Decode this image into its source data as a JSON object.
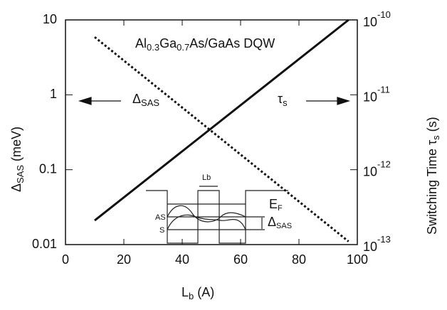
{
  "chart_data": {
    "type": "line",
    "title": [
      "Al",
      "0.3",
      "Ga",
      "0.7",
      "As/GaAs DQW"
    ],
    "x_label": [
      "L",
      "b",
      " (A)"
    ],
    "y_label": [
      "Δ",
      "SAS",
      " (meV)"
    ],
    "y2_label": [
      "Switching Time  ",
      "τ",
      "s",
      " (s)"
    ],
    "annotations": {
      "delta": [
        "Δ",
        "SAS"
      ],
      "tau": [
        "τ",
        "s"
      ]
    },
    "inset": {
      "lb": "Lb",
      "ef": [
        "E",
        "F"
      ],
      "as": "AS",
      "s": "S",
      "delta": [
        "Δ",
        "SAS"
      ]
    },
    "x": [
      10,
      97
    ],
    "series": [
      {
        "color": "#111111",
        "dashed": true,
        "values": [
          5.9,
          0.011
        ]
      },
      {
        "color": "#111111",
        "dashed": false,
        "axis": "y2",
        "values": [
          2.1e-13,
          1e-10
        ]
      }
    ],
    "xlim": [
      0,
      100
    ],
    "xticks": [
      0,
      20,
      40,
      60,
      80,
      100
    ],
    "ylim": [
      0.01,
      10
    ],
    "yticks": [
      0.01,
      0.1,
      1,
      10
    ],
    "ylog": true,
    "y2lim": [
      1e-13,
      1e-10
    ],
    "y2log": true,
    "y2ticks": [
      {
        "value": 1e-13,
        "label": "10",
        "exponent": "-13"
      },
      {
        "value": 1e-12,
        "label": "10",
        "exponent": "-12"
      },
      {
        "value": 1e-11,
        "label": "10",
        "exponent": "-11"
      },
      {
        "value": 1e-10,
        "label": "10",
        "exponent": "-10"
      }
    ]
  }
}
